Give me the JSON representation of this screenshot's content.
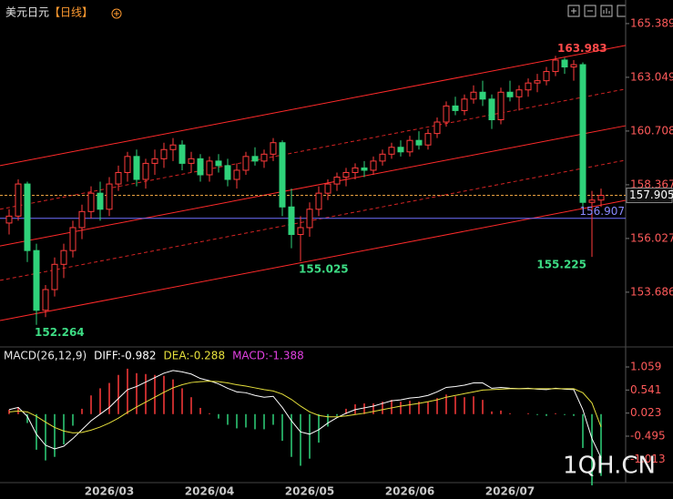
{
  "header": {
    "symbol": "美元日元",
    "period": "【日线】"
  },
  "watermark": "1QH.CN",
  "chart_data": [
    {
      "type": "candlestick",
      "categories": [
        null,
        null,
        null,
        null,
        null,
        null,
        null,
        null,
        null,
        null,
        null,
        "2026/03",
        null,
        null,
        null,
        null,
        null,
        null,
        null,
        null,
        null,
        null,
        "2026/04",
        null,
        null,
        null,
        null,
        null,
        null,
        null,
        null,
        null,
        null,
        "2026/05",
        null,
        null,
        null,
        null,
        null,
        null,
        null,
        null,
        null,
        null,
        "2026/06",
        null,
        null,
        null,
        null,
        null,
        null,
        null,
        null,
        null,
        null,
        "2026/07",
        null,
        null,
        null,
        null,
        null,
        null,
        null,
        null,
        null,
        null
      ],
      "open": [
        156.7,
        157.0,
        158.4,
        155.5,
        152.9,
        153.8,
        154.9,
        155.5,
        156.5,
        157.2,
        158.0,
        157.3,
        158.4,
        158.9,
        159.6,
        158.6,
        159.3,
        159.5,
        159.9,
        160.1,
        159.3,
        159.5,
        158.8,
        159.4,
        159.2,
        158.6,
        159.0,
        159.6,
        159.4,
        159.7,
        160.2,
        157.4,
        156.2,
        156.5,
        157.3,
        158.0,
        158.4,
        158.7,
        158.9,
        159.1,
        159.0,
        159.4,
        159.7,
        160.0,
        159.8,
        160.3,
        160.1,
        160.6,
        161.1,
        161.8,
        161.6,
        162.1,
        162.4,
        162.1,
        161.2,
        162.4,
        162.2,
        162.5,
        162.8,
        162.9,
        163.3,
        163.8,
        163.5,
        163.6,
        157.6,
        157.7
      ],
      "high": [
        157.3,
        158.6,
        158.5,
        155.8,
        154.0,
        155.2,
        155.8,
        156.8,
        157.5,
        158.3,
        158.5,
        158.7,
        159.2,
        159.8,
        159.9,
        159.5,
        159.9,
        160.2,
        160.4,
        160.3,
        159.8,
        159.7,
        159.6,
        159.7,
        159.5,
        159.3,
        159.8,
        160.0,
        159.9,
        160.4,
        160.3,
        158.2,
        157.0,
        157.6,
        158.3,
        158.6,
        158.9,
        159.1,
        159.3,
        159.4,
        159.6,
        159.9,
        160.2,
        160.3,
        160.5,
        160.7,
        160.8,
        161.3,
        162.0,
        162.2,
        162.3,
        162.7,
        162.9,
        162.3,
        162.6,
        162.9,
        162.7,
        163.0,
        163.2,
        163.5,
        163.983,
        163.9,
        163.8,
        163.7,
        158.1,
        158.2
      ],
      "low": [
        156.2,
        156.8,
        155.0,
        152.264,
        152.6,
        153.5,
        154.3,
        155.2,
        156.0,
        156.9,
        156.8,
        157.0,
        158.1,
        158.5,
        158.3,
        158.2,
        158.8,
        159.1,
        159.4,
        159.0,
        158.9,
        158.5,
        158.5,
        158.9,
        158.3,
        158.2,
        158.8,
        159.2,
        159.1,
        159.4,
        157.0,
        155.6,
        155.025,
        156.1,
        157.0,
        157.7,
        158.1,
        158.3,
        158.6,
        158.7,
        158.8,
        159.2,
        159.5,
        159.6,
        159.6,
        159.9,
        159.9,
        160.4,
        160.9,
        161.4,
        161.4,
        161.9,
        161.8,
        160.8,
        161.0,
        162.0,
        161.6,
        162.2,
        162.4,
        162.7,
        163.1,
        163.2,
        162.9,
        157.3,
        155.225,
        157.4
      ],
      "close": [
        157.0,
        158.4,
        155.5,
        152.9,
        153.8,
        154.9,
        155.5,
        156.5,
        157.2,
        158.0,
        157.3,
        158.4,
        158.9,
        159.6,
        158.6,
        159.3,
        159.5,
        159.9,
        160.1,
        159.3,
        159.5,
        158.8,
        159.4,
        159.2,
        158.6,
        159.0,
        159.6,
        159.4,
        159.7,
        160.2,
        157.4,
        156.2,
        156.5,
        157.3,
        158.0,
        158.4,
        158.7,
        158.9,
        159.1,
        159.0,
        159.4,
        159.7,
        160.0,
        159.8,
        160.3,
        160.1,
        160.6,
        161.1,
        161.8,
        161.6,
        162.1,
        162.4,
        162.1,
        161.2,
        162.4,
        162.2,
        162.5,
        162.8,
        162.9,
        163.3,
        163.8,
        163.5,
        163.6,
        157.6,
        157.7,
        157.905
      ],
      "up_color": "#ff3b3b",
      "down_color": "#2fd27a",
      "ylim": [
        151.42,
        166.1
      ],
      "yticks": [
        165.389,
        163.049,
        160.708,
        158.367,
        156.027,
        153.686
      ],
      "channel_lines": [
        {
          "values": [
            159.2,
            164.44
          ],
          "color": "#ff2a2a",
          "dashed": false
        },
        {
          "values": [
            157.3,
            162.54
          ],
          "color": "#d42424",
          "dashed": true
        },
        {
          "values": [
            155.7,
            160.94
          ],
          "color": "#ff2a2a",
          "dashed": false
        },
        {
          "values": [
            154.2,
            159.44
          ],
          "color": "#d42424",
          "dashed": true
        },
        {
          "values": [
            152.45,
            157.69
          ],
          "color": "#ff2a2a",
          "dashed": false
        }
      ],
      "last_price": 157.905,
      "last_price_color": "#e8a040",
      "ref_line": {
        "value": 156.907,
        "color": "#6f6fff"
      },
      "high_labels": [
        163.983
      ],
      "high_label_color": "#ff4a4a",
      "low_labels": [
        152.264,
        155.025,
        155.225
      ],
      "low_label_color": "#3ddc84"
    },
    {
      "type": "macd",
      "title": "MACD(26,12,9)",
      "series": [
        {
          "label": "DIFF:-0.982",
          "color": "#ffffff",
          "values": [
            0.1,
            0.15,
            -0.05,
            -0.45,
            -0.7,
            -0.78,
            -0.72,
            -0.55,
            -0.35,
            -0.15,
            0.0,
            0.15,
            0.35,
            0.55,
            0.62,
            0.72,
            0.82,
            0.92,
            0.98,
            0.95,
            0.9,
            0.8,
            0.75,
            0.68,
            0.58,
            0.5,
            0.48,
            0.42,
            0.38,
            0.4,
            0.15,
            -0.15,
            -0.4,
            -0.45,
            -0.35,
            -0.2,
            -0.08,
            0.02,
            0.1,
            0.14,
            0.18,
            0.24,
            0.3,
            0.32,
            0.36,
            0.38,
            0.42,
            0.5,
            0.6,
            0.62,
            0.65,
            0.7,
            0.7,
            0.58,
            0.6,
            0.58,
            0.57,
            0.58,
            0.56,
            0.55,
            0.58,
            0.56,
            0.55,
            0.1,
            -0.55,
            -0.982
          ]
        },
        {
          "label": "DEA:-0.288",
          "color": "#e6e03c",
          "values": [
            0.05,
            0.07,
            0.05,
            -0.05,
            -0.18,
            -0.3,
            -0.38,
            -0.42,
            -0.41,
            -0.36,
            -0.29,
            -0.2,
            -0.09,
            0.04,
            0.16,
            0.27,
            0.38,
            0.49,
            0.59,
            0.66,
            0.71,
            0.73,
            0.74,
            0.73,
            0.7,
            0.66,
            0.63,
            0.59,
            0.55,
            0.52,
            0.45,
            0.33,
            0.18,
            0.05,
            -0.03,
            -0.06,
            -0.06,
            -0.04,
            -0.01,
            0.02,
            0.06,
            0.1,
            0.14,
            0.18,
            0.21,
            0.24,
            0.28,
            0.32,
            0.38,
            0.42,
            0.46,
            0.5,
            0.54,
            0.55,
            0.56,
            0.57,
            0.57,
            0.57,
            0.57,
            0.57,
            0.57,
            0.57,
            0.57,
            0.48,
            0.25,
            -0.288
          ]
        }
      ],
      "histogram": {
        "label": "MACD:-1.388",
        "label_color": "#e040e0",
        "up_color": "#ff3b3b",
        "down_color": "#2fd27a",
        "values": [
          0.1,
          0.16,
          -0.2,
          -0.8,
          -1.04,
          -0.96,
          -0.68,
          -0.26,
          0.12,
          0.42,
          0.58,
          0.7,
          0.88,
          1.02,
          0.92,
          0.9,
          0.88,
          0.86,
          0.78,
          0.58,
          0.38,
          0.14,
          0.02,
          -0.1,
          -0.24,
          -0.32,
          -0.3,
          -0.34,
          -0.34,
          -0.24,
          -0.6,
          -0.96,
          -1.16,
          -1.0,
          -0.64,
          -0.28,
          -0.04,
          0.12,
          0.22,
          0.24,
          0.24,
          0.28,
          0.32,
          0.28,
          0.3,
          0.28,
          0.28,
          0.36,
          0.44,
          0.4,
          0.38,
          0.4,
          0.32,
          0.06,
          0.08,
          0.02,
          0.0,
          0.02,
          -0.02,
          -0.04,
          0.02,
          -0.02,
          -0.04,
          -0.76,
          -1.6,
          -1.388
        ]
      },
      "ylim": [
        -1.538,
        1.427
      ],
      "yticks": [
        1.059,
        0.541,
        0.023,
        -0.495,
        -1.013
      ]
    }
  ]
}
